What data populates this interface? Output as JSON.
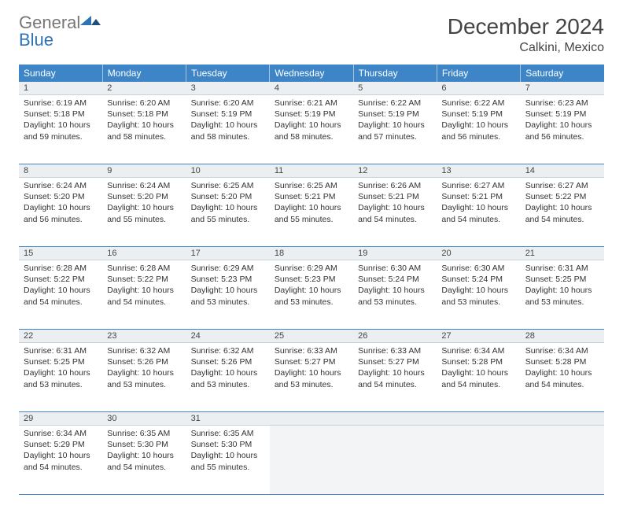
{
  "brand": {
    "general": "General",
    "blue": "Blue"
  },
  "title": "December 2024",
  "location": "Calkini, Mexico",
  "colors": {
    "header_bg": "#3d85c6",
    "header_text": "#ffffff",
    "daynum_bg": "#eceff1",
    "border": "#3d85c6",
    "logo_accent": "#2f73b5"
  },
  "weekdays": [
    "Sunday",
    "Monday",
    "Tuesday",
    "Wednesday",
    "Thursday",
    "Friday",
    "Saturday"
  ],
  "weeks": [
    [
      {
        "n": "1",
        "sr": "6:19 AM",
        "ss": "5:18 PM",
        "dl": "10 hours and 59 minutes."
      },
      {
        "n": "2",
        "sr": "6:20 AM",
        "ss": "5:18 PM",
        "dl": "10 hours and 58 minutes."
      },
      {
        "n": "3",
        "sr": "6:20 AM",
        "ss": "5:19 PM",
        "dl": "10 hours and 58 minutes."
      },
      {
        "n": "4",
        "sr": "6:21 AM",
        "ss": "5:19 PM",
        "dl": "10 hours and 58 minutes."
      },
      {
        "n": "5",
        "sr": "6:22 AM",
        "ss": "5:19 PM",
        "dl": "10 hours and 57 minutes."
      },
      {
        "n": "6",
        "sr": "6:22 AM",
        "ss": "5:19 PM",
        "dl": "10 hours and 56 minutes."
      },
      {
        "n": "7",
        "sr": "6:23 AM",
        "ss": "5:19 PM",
        "dl": "10 hours and 56 minutes."
      }
    ],
    [
      {
        "n": "8",
        "sr": "6:24 AM",
        "ss": "5:20 PM",
        "dl": "10 hours and 56 minutes."
      },
      {
        "n": "9",
        "sr": "6:24 AM",
        "ss": "5:20 PM",
        "dl": "10 hours and 55 minutes."
      },
      {
        "n": "10",
        "sr": "6:25 AM",
        "ss": "5:20 PM",
        "dl": "10 hours and 55 minutes."
      },
      {
        "n": "11",
        "sr": "6:25 AM",
        "ss": "5:21 PM",
        "dl": "10 hours and 55 minutes."
      },
      {
        "n": "12",
        "sr": "6:26 AM",
        "ss": "5:21 PM",
        "dl": "10 hours and 54 minutes."
      },
      {
        "n": "13",
        "sr": "6:27 AM",
        "ss": "5:21 PM",
        "dl": "10 hours and 54 minutes."
      },
      {
        "n": "14",
        "sr": "6:27 AM",
        "ss": "5:22 PM",
        "dl": "10 hours and 54 minutes."
      }
    ],
    [
      {
        "n": "15",
        "sr": "6:28 AM",
        "ss": "5:22 PM",
        "dl": "10 hours and 54 minutes."
      },
      {
        "n": "16",
        "sr": "6:28 AM",
        "ss": "5:22 PM",
        "dl": "10 hours and 54 minutes."
      },
      {
        "n": "17",
        "sr": "6:29 AM",
        "ss": "5:23 PM",
        "dl": "10 hours and 53 minutes."
      },
      {
        "n": "18",
        "sr": "6:29 AM",
        "ss": "5:23 PM",
        "dl": "10 hours and 53 minutes."
      },
      {
        "n": "19",
        "sr": "6:30 AM",
        "ss": "5:24 PM",
        "dl": "10 hours and 53 minutes."
      },
      {
        "n": "20",
        "sr": "6:30 AM",
        "ss": "5:24 PM",
        "dl": "10 hours and 53 minutes."
      },
      {
        "n": "21",
        "sr": "6:31 AM",
        "ss": "5:25 PM",
        "dl": "10 hours and 53 minutes."
      }
    ],
    [
      {
        "n": "22",
        "sr": "6:31 AM",
        "ss": "5:25 PM",
        "dl": "10 hours and 53 minutes."
      },
      {
        "n": "23",
        "sr": "6:32 AM",
        "ss": "5:26 PM",
        "dl": "10 hours and 53 minutes."
      },
      {
        "n": "24",
        "sr": "6:32 AM",
        "ss": "5:26 PM",
        "dl": "10 hours and 53 minutes."
      },
      {
        "n": "25",
        "sr": "6:33 AM",
        "ss": "5:27 PM",
        "dl": "10 hours and 53 minutes."
      },
      {
        "n": "26",
        "sr": "6:33 AM",
        "ss": "5:27 PM",
        "dl": "10 hours and 54 minutes."
      },
      {
        "n": "27",
        "sr": "6:34 AM",
        "ss": "5:28 PM",
        "dl": "10 hours and 54 minutes."
      },
      {
        "n": "28",
        "sr": "6:34 AM",
        "ss": "5:28 PM",
        "dl": "10 hours and 54 minutes."
      }
    ],
    [
      {
        "n": "29",
        "sr": "6:34 AM",
        "ss": "5:29 PM",
        "dl": "10 hours and 54 minutes."
      },
      {
        "n": "30",
        "sr": "6:35 AM",
        "ss": "5:30 PM",
        "dl": "10 hours and 54 minutes."
      },
      {
        "n": "31",
        "sr": "6:35 AM",
        "ss": "5:30 PM",
        "dl": "10 hours and 55 minutes."
      },
      null,
      null,
      null,
      null
    ]
  ],
  "labels": {
    "sunrise": "Sunrise:",
    "sunset": "Sunset:",
    "daylight": "Daylight:"
  }
}
